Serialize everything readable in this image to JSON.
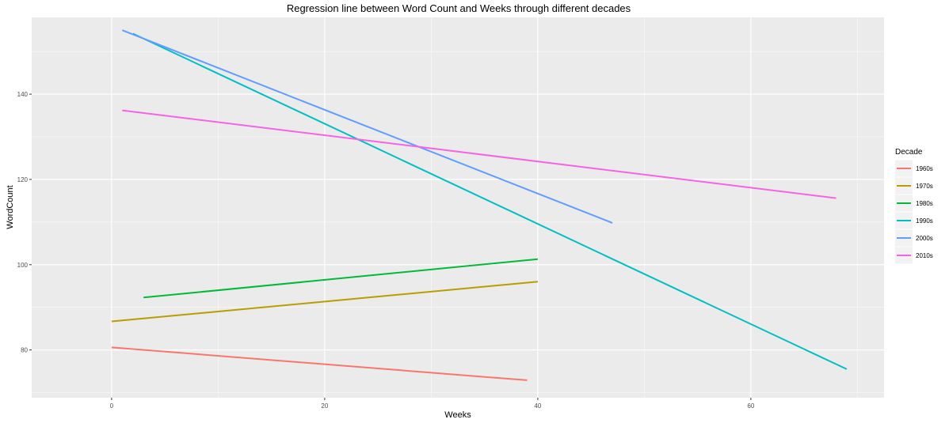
{
  "chart_data": {
    "type": "line",
    "title": "Regression line between Word Count and Weeks through different decades",
    "xlabel": "Weeks",
    "ylabel": "WordCount",
    "xlim": [
      -7.5,
      72.5
    ],
    "ylim": [
      68.8,
      158.0
    ],
    "x_ticks": [
      0,
      20,
      40,
      60
    ],
    "y_ticks": [
      80,
      100,
      120,
      140
    ],
    "x_tick_labels": [
      "0",
      "20",
      "40",
      "60"
    ],
    "y_tick_labels": [
      "80",
      "100",
      "120",
      "140"
    ],
    "grid": true,
    "legend": {
      "title": "Decade",
      "position": "right"
    },
    "series": [
      {
        "name": "1960s",
        "color": "#F8766D",
        "x": [
          0,
          39
        ],
        "y": [
          80.6,
          72.9
        ]
      },
      {
        "name": "1970s",
        "color": "#B79F00",
        "x": [
          0,
          40
        ],
        "y": [
          86.7,
          96.0
        ]
      },
      {
        "name": "1980s",
        "color": "#00BA38",
        "x": [
          3,
          40
        ],
        "y": [
          92.3,
          101.3
        ]
      },
      {
        "name": "1990s",
        "color": "#00BFC4",
        "x": [
          2,
          69
        ],
        "y": [
          154.2,
          75.5
        ]
      },
      {
        "name": "2000s",
        "color": "#619CFF",
        "x": [
          1,
          47
        ],
        "y": [
          155.0,
          109.8
        ]
      },
      {
        "name": "2010s",
        "color": "#F564E3",
        "x": [
          1,
          68
        ],
        "y": [
          136.2,
          115.6
        ]
      }
    ]
  }
}
